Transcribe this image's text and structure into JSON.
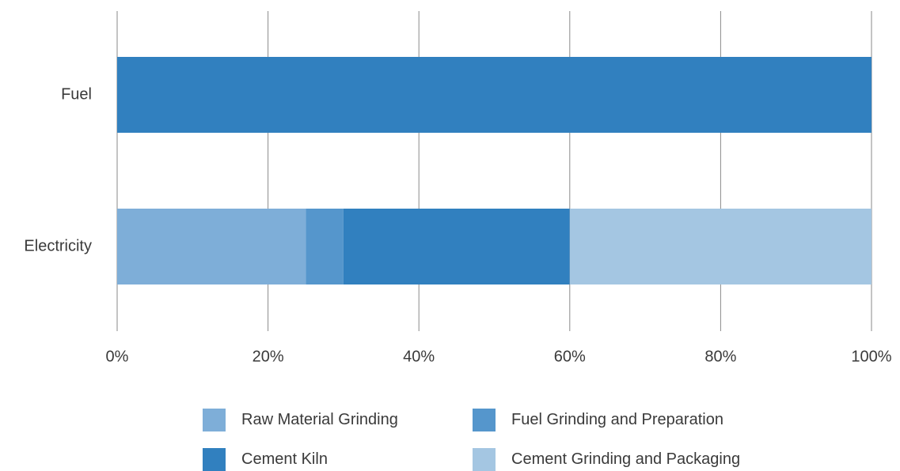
{
  "chart_data": {
    "type": "bar",
    "orientation": "horizontal",
    "stacked": true,
    "title": "",
    "xlabel": "",
    "ylabel": "",
    "categories": [
      "Fuel",
      "Electricity"
    ],
    "xlim": [
      0,
      100
    ],
    "x_ticks": [
      "0%",
      "20%",
      "40%",
      "60%",
      "80%",
      "100%"
    ],
    "x_tick_values": [
      0,
      20,
      40,
      60,
      80,
      100
    ],
    "grid": true,
    "legend_position": "bottom",
    "series": [
      {
        "name": "Raw Material Grinding",
        "color": "#7eaed8",
        "values": [
          0,
          25
        ]
      },
      {
        "name": "Fuel Grinding and Preparation",
        "color": "#5596cc",
        "values": [
          0,
          5
        ]
      },
      {
        "name": "Cement Kiln",
        "color": "#3180bf",
        "values": [
          100,
          30
        ]
      },
      {
        "name": "Cement Grinding and Packaging",
        "color": "#a4c6e2",
        "values": [
          0,
          40
        ]
      }
    ]
  }
}
